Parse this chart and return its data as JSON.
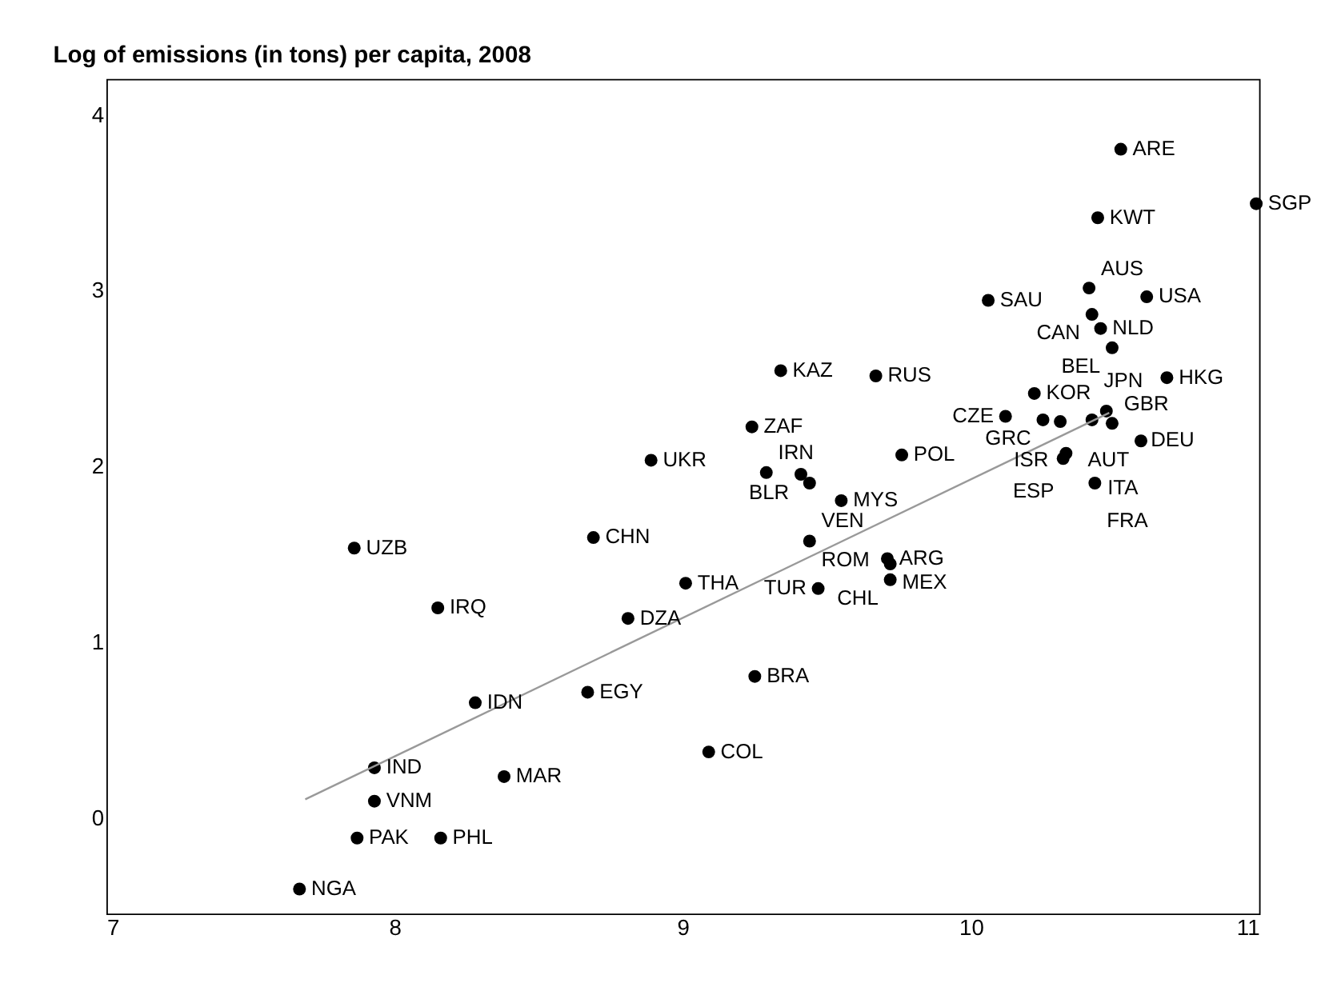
{
  "chart_data": {
    "type": "scatter",
    "title": "Log of emissions (in tons) per capita, 2008",
    "xlim": [
      7,
      11
    ],
    "xticks": [
      7,
      8,
      9,
      10,
      11
    ],
    "ylim": [
      -0.55,
      4.2
    ],
    "yticks": [
      0,
      1,
      2,
      3,
      4
    ],
    "grid": false,
    "series": [
      {
        "color": "#000000",
        "marker": "circle",
        "x": [
          10.52,
          10.99,
          10.44,
          10.41,
          10.61,
          10.06,
          10.42,
          10.45,
          10.49,
          9.34,
          9.67,
          10.68,
          10.22,
          9.24,
          10.12,
          10.25,
          10.31,
          10.42,
          10.47,
          10.49,
          10.59,
          10.33,
          10.32,
          10.43,
          8.89,
          9.29,
          9.41,
          9.44,
          9.76,
          9.55,
          8.69,
          7.86,
          9.44,
          9.71,
          9.72,
          9.72,
          9.01,
          9.47,
          8.15,
          8.81,
          9.25,
          8.67,
          8.28,
          9.09,
          7.93,
          8.38,
          7.93,
          7.87,
          8.16,
          7.67
        ],
        "values": [
          3.8,
          3.49,
          3.41,
          3.01,
          2.96,
          2.94,
          2.86,
          2.78,
          2.67,
          2.54,
          2.51,
          2.5,
          2.41,
          2.22,
          2.28,
          2.26,
          2.25,
          2.26,
          2.31,
          2.24,
          2.14,
          2.07,
          2.04,
          1.9,
          2.03,
          1.96,
          1.95,
          1.9,
          2.06,
          1.8,
          1.59,
          1.53,
          1.57,
          1.47,
          1.44,
          1.35,
          1.33,
          1.3,
          1.19,
          1.13,
          0.8,
          0.71,
          0.65,
          0.37,
          0.28,
          0.23,
          0.09,
          -0.12,
          -0.12,
          -0.41
        ]
      },
      {
        "type": "line",
        "color": "#999999",
        "x": [
          7.69,
          10.48
        ],
        "values": [
          0.1,
          2.3
        ]
      }
    ],
    "annotations": [
      {
        "text": "ARE",
        "x": 10.52,
        "y": 3.8
      },
      {
        "text": "SGP",
        "x": 10.99,
        "y": 3.49
      },
      {
        "text": "KWT",
        "x": 10.44,
        "y": 3.41
      },
      {
        "text": "AUS",
        "x": 10.41,
        "y": 3.01
      },
      {
        "text": "USA",
        "x": 10.61,
        "y": 2.96
      },
      {
        "text": "SAU",
        "x": 10.06,
        "y": 2.94
      },
      {
        "text": "CAN",
        "x": 10.42,
        "y": 2.86
      },
      {
        "text": "NLD",
        "x": 10.45,
        "y": 2.78
      },
      {
        "text": "BEL",
        "x": 10.49,
        "y": 2.67
      },
      {
        "text": "KAZ",
        "x": 9.34,
        "y": 2.54
      },
      {
        "text": "RUS",
        "x": 9.67,
        "y": 2.51
      },
      {
        "text": "HKG",
        "x": 10.68,
        "y": 2.5
      },
      {
        "text": "KOR",
        "x": 10.22,
        "y": 2.41
      },
      {
        "text": "ZAF",
        "x": 9.24,
        "y": 2.22
      },
      {
        "text": "CZE",
        "x": 10.12,
        "y": 2.28
      },
      {
        "text": "GRC",
        "x": 10.25,
        "y": 2.26
      },
      {
        "text": "ISR",
        "x": 10.31,
        "y": 2.25
      },
      {
        "text": "JPN",
        "x": 10.42,
        "y": 2.26
      },
      {
        "text": "DEU",
        "x": 10.47,
        "y": 2.31
      },
      {
        "text": "GBR",
        "x": 10.49,
        "y": 2.24
      },
      {
        "text": "AUT",
        "x": 10.59,
        "y": 2.14
      },
      {
        "text": "ESP",
        "x": 10.33,
        "y": 2.07
      },
      {
        "text": "ITA",
        "x": 10.32,
        "y": 2.04
      },
      {
        "text": "FRA",
        "x": 10.43,
        "y": 1.9
      },
      {
        "text": "UKR",
        "x": 8.89,
        "y": 2.03
      },
      {
        "text": "IRN",
        "x": 9.29,
        "y": 1.96
      },
      {
        "text": "BLR",
        "x": 9.41,
        "y": 1.95
      },
      {
        "text": "VEN",
        "x": 9.44,
        "y": 1.9
      },
      {
        "text": "POL",
        "x": 9.76,
        "y": 2.06
      },
      {
        "text": "MYS",
        "x": 9.55,
        "y": 1.8
      },
      {
        "text": "CHN",
        "x": 8.69,
        "y": 1.59
      },
      {
        "text": "UZB",
        "x": 7.86,
        "y": 1.53
      },
      {
        "text": "ROM",
        "x": 9.44,
        "y": 1.57
      },
      {
        "text": "ARG",
        "x": 9.71,
        "y": 1.47
      },
      {
        "text": "MEX",
        "x": 9.72,
        "y": 1.44
      },
      {
        "text": "CHL",
        "x": 9.72,
        "y": 1.35
      },
      {
        "text": "THA",
        "x": 9.01,
        "y": 1.33
      },
      {
        "text": "TUR",
        "x": 9.47,
        "y": 1.3
      },
      {
        "text": "IRQ",
        "x": 8.15,
        "y": 1.19
      },
      {
        "text": "DZA",
        "x": 8.81,
        "y": 1.13
      },
      {
        "text": "BRA",
        "x": 9.25,
        "y": 0.8
      },
      {
        "text": "EGY",
        "x": 8.67,
        "y": 0.71
      },
      {
        "text": "IDN",
        "x": 8.28,
        "y": 0.65
      },
      {
        "text": "COL",
        "x": 9.09,
        "y": 0.37
      },
      {
        "text": "IND",
        "x": 7.93,
        "y": 0.28
      },
      {
        "text": "MAR",
        "x": 8.38,
        "y": 0.23
      },
      {
        "text": "VNM",
        "x": 7.93,
        "y": 0.09
      },
      {
        "text": "PAK",
        "x": 7.87,
        "y": -0.12
      },
      {
        "text": "PHL",
        "x": 8.16,
        "y": -0.12
      },
      {
        "text": "NGA",
        "x": 7.67,
        "y": -0.41
      }
    ]
  }
}
